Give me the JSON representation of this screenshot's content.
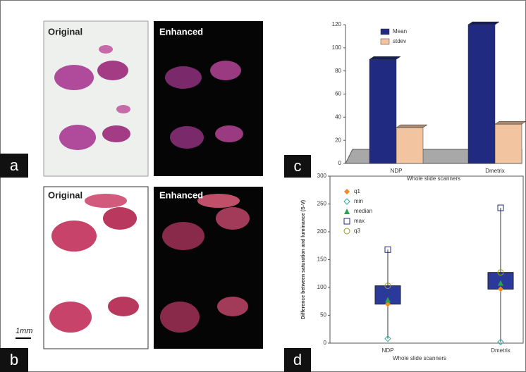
{
  "panels": [
    {
      "label": "a",
      "images": [
        "Original",
        "Enhanced"
      ]
    },
    {
      "label": "b",
      "images": [
        "Original",
        "Enhanced"
      ]
    },
    {
      "label": "c"
    },
    {
      "label": "d"
    }
  ],
  "scale_bar": "1mm",
  "chart_data": [
    {
      "type": "bar",
      "x_label": "Whole slide scanners",
      "categories": [
        "NDP",
        "Dmetrix"
      ],
      "series": [
        {
          "name": "Mean",
          "color": "#1f2a80",
          "values": [
            90,
            120
          ]
        },
        {
          "name": "stdev",
          "color": "#f3c4a0",
          "values": [
            31,
            34
          ]
        }
      ],
      "ylim": [
        0,
        120
      ],
      "yticks": [
        0,
        20,
        40,
        60,
        80,
        100,
        120
      ],
      "legend": "top-right"
    },
    {
      "type": "box",
      "x_label": "Whole slide scanners",
      "y_label": "Difference between saturation and luminance (S-V)",
      "categories": [
        "NDP",
        "Dmetrix"
      ],
      "series": [
        {
          "name": "q1",
          "color": "#f08a1c",
          "values": [
            70,
            97
          ]
        },
        {
          "name": "min",
          "color": "#2aa9a0",
          "values": [
            8,
            2
          ]
        },
        {
          "name": "median",
          "color": "#2aa055",
          "values": [
            78,
            108
          ]
        },
        {
          "name": "max",
          "color": "#1f2a80",
          "values": [
            168,
            243
          ]
        },
        {
          "name": "q3",
          "color": "#9a9a20",
          "values": [
            103,
            127
          ]
        }
      ],
      "box_color": "#2b3a9a",
      "ylim": [
        0,
        300
      ],
      "yticks": [
        0,
        50,
        100,
        150,
        200,
        250,
        300
      ],
      "legend": "top-left"
    }
  ]
}
